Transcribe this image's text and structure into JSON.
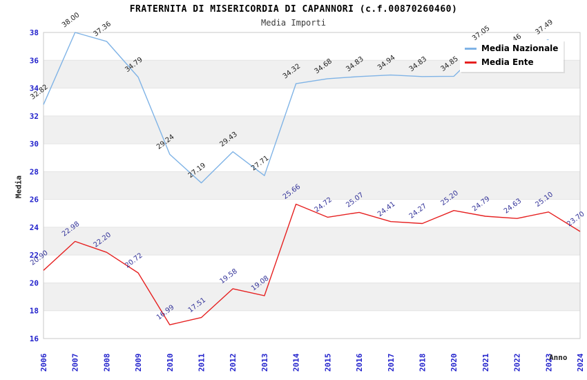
{
  "title": "FRATERNITA DI MISERICORDIA DI CAPANNORI (c.f.00870260460)",
  "subtitle": "Media Importi",
  "legend": {
    "items": [
      {
        "label": "Media Nazionale"
      },
      {
        "label": "Media Ente"
      }
    ]
  },
  "chart_data": {
    "type": "line",
    "title": "FRATERNITA DI MISERICORDIA DI CAPANNORI (c.f.00870260460)",
    "subtitle": "Media Importi",
    "xlabel": "Anno",
    "ylabel": "Media",
    "ylim": [
      16,
      38
    ],
    "ytick_step": 2,
    "yticks": [
      16,
      18,
      20,
      22,
      24,
      26,
      28,
      30,
      32,
      34,
      36,
      38
    ],
    "grid": true,
    "alternating_bands": true,
    "legend_position": "top-right",
    "categories": [
      "2006",
      "2007",
      "2008",
      "2009",
      "2010",
      "2011",
      "2012",
      "2013",
      "2014",
      "2015",
      "2016",
      "2017",
      "2018",
      "2020",
      "2021",
      "2022",
      "2023",
      "2024"
    ],
    "series": [
      {
        "name": "Media Nazionale",
        "color": "#7FB3E6",
        "label_color": "#1f1f1f",
        "values": [
          32.82,
          38.0,
          37.36,
          34.79,
          29.24,
          27.19,
          29.43,
          27.71,
          34.32,
          34.68,
          34.83,
          34.94,
          34.83,
          34.85,
          37.05,
          36.46,
          37.49,
          null
        ],
        "labels": [
          "32.82",
          "38.00",
          "37.36",
          "34.79",
          "29.24",
          "27.19",
          "29.43",
          "27.71",
          "34.32",
          "34.68",
          "34.83",
          "34.94",
          "34.83",
          "34.85",
          "37.05",
          "36.46",
          "37.49",
          ""
        ]
      },
      {
        "name": "Media Ente",
        "color": "#E62020",
        "label_color": "#333399",
        "values": [
          20.9,
          22.98,
          22.2,
          20.72,
          16.99,
          17.51,
          19.58,
          19.08,
          25.66,
          24.72,
          25.07,
          24.41,
          24.27,
          25.2,
          24.79,
          24.63,
          25.1,
          23.7
        ],
        "labels": [
          "20.90",
          "22.98",
          "22.20",
          "20.72",
          "16.99",
          "17.51",
          "19.58",
          "19.08",
          "25.66",
          "24.72",
          "25.07",
          "24.41",
          "24.27",
          "25.20",
          "24.79",
          "24.63",
          "25.10",
          "23.70"
        ]
      }
    ],
    "colors": {
      "tick_label": "#2222CC",
      "band": "#F0F0F0",
      "grid": "#E4E4E4",
      "plot_border": "#C9C9C9"
    }
  }
}
